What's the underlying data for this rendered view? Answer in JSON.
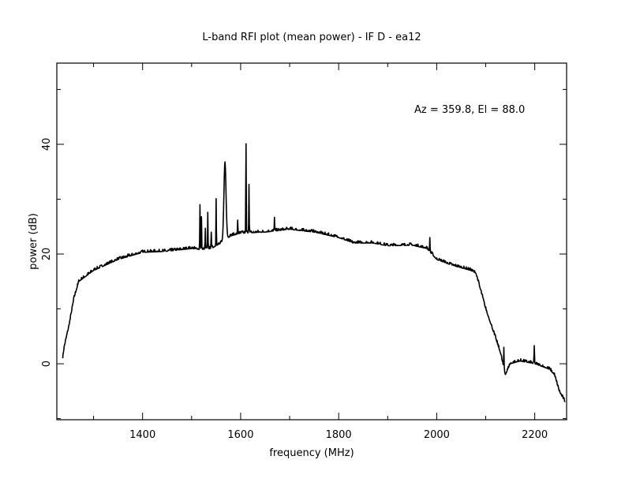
{
  "chart_data": {
    "type": "line",
    "title": "L-band RFI plot (mean power) - IF D - ea12",
    "annotation": "Az = 359.8, El = 88.0",
    "xlabel": "frequency (MHz)",
    "ylabel": "power (dB)",
    "xlim": [
      1225,
      2265
    ],
    "ylim": [
      -10.2,
      54.8
    ],
    "x_ticks": [
      1400,
      1600,
      1800,
      2000,
      2200
    ],
    "x_tick_labels": [
      "1400",
      "1600",
      "1800",
      "2000",
      "2200"
    ],
    "x_minor_ticks": [
      1300,
      1500,
      1700,
      1900,
      2100
    ],
    "y_ticks": [
      0,
      20,
      40
    ],
    "y_tick_labels": [
      "0",
      "20",
      "40"
    ],
    "y_minor_ticks": [
      -10,
      10,
      30,
      50
    ],
    "grid": false,
    "series": [
      {
        "name": "mean power",
        "baseline": [
          [
            1237,
            1
          ],
          [
            1240,
            3
          ],
          [
            1250,
            7
          ],
          [
            1260,
            12
          ],
          [
            1270,
            15
          ],
          [
            1300,
            17
          ],
          [
            1350,
            19
          ],
          [
            1400,
            20.3
          ],
          [
            1450,
            20.5
          ],
          [
            1500,
            21
          ],
          [
            1520,
            20.8
          ],
          [
            1540,
            21
          ],
          [
            1560,
            22
          ],
          [
            1580,
            23.3
          ],
          [
            1600,
            23.8
          ],
          [
            1650,
            24
          ],
          [
            1700,
            24.5
          ],
          [
            1750,
            24
          ],
          [
            1800,
            23
          ],
          [
            1830,
            22
          ],
          [
            1870,
            22
          ],
          [
            1900,
            21.5
          ],
          [
            1950,
            21.6
          ],
          [
            1980,
            21
          ],
          [
            2000,
            19
          ],
          [
            2030,
            18
          ],
          [
            2070,
            17
          ],
          [
            2080,
            16.5
          ],
          [
            2100,
            10
          ],
          [
            2130,
            2
          ],
          [
            2140,
            -2
          ],
          [
            2150,
            0
          ],
          [
            2170,
            0.5
          ],
          [
            2200,
            0
          ],
          [
            2230,
            -1
          ],
          [
            2240,
            -2
          ],
          [
            2250,
            -5
          ],
          [
            2262,
            -7
          ]
        ],
        "spikes": [
          [
            1517,
            29.0
          ],
          [
            1520,
            26.8
          ],
          [
            1528,
            24.7
          ],
          [
            1533,
            27.6
          ],
          [
            1540,
            24.0
          ],
          [
            1550,
            30.1
          ],
          [
            1568,
            36.8
          ],
          [
            1594,
            26.2
          ],
          [
            1611,
            40.1
          ],
          [
            1617,
            32.7
          ],
          [
            1669,
            26.7
          ],
          [
            1986,
            23.0
          ],
          [
            2137,
            3.0
          ],
          [
            2199,
            3.3
          ]
        ]
      }
    ]
  }
}
